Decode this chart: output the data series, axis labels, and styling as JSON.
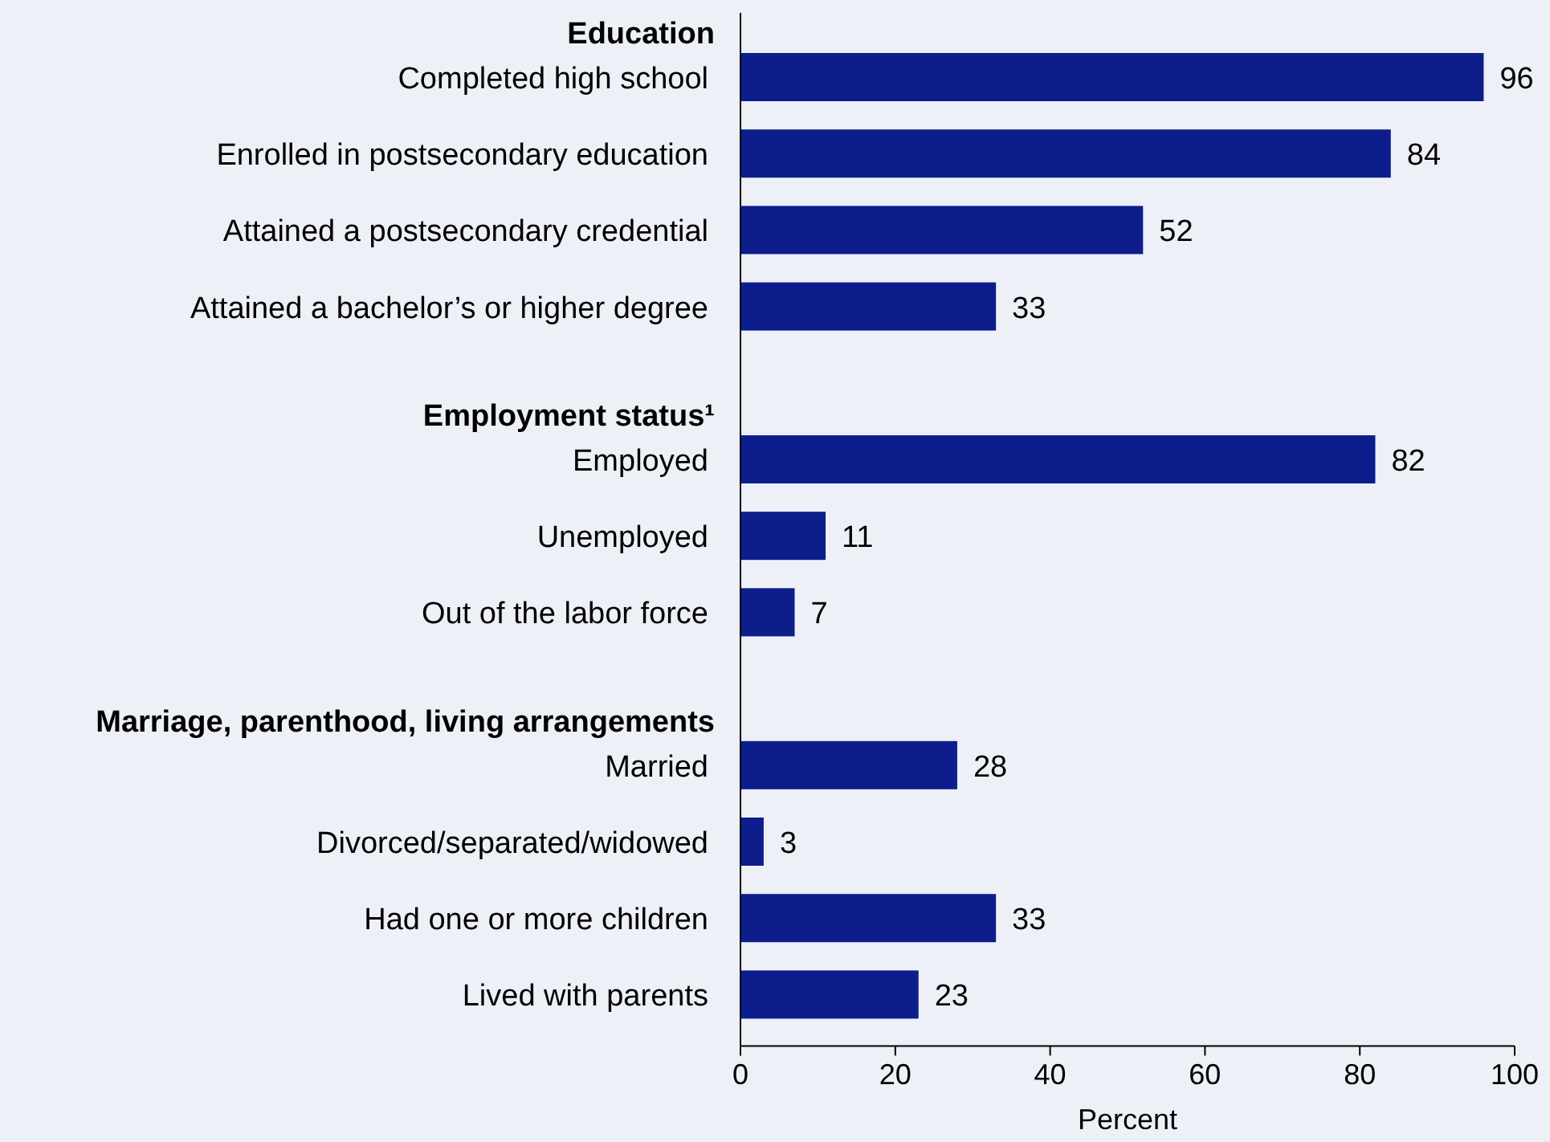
{
  "chart_data": {
    "type": "bar",
    "orientation": "horizontal",
    "xlabel": "Percent",
    "categories": [
      "Education",
      "Completed high school",
      "Enrolled in postsecondary education",
      "Attained a postsecondary credential",
      "Attained a bachelor’s or higher degree",
      "Employment status¹",
      "Employed",
      "Unemployed",
      "Out of the labor force",
      "Marriage, parenthood, living arrangements",
      "Married",
      "Divorced/separated/widowed",
      "Had one or more children",
      "Lived with parents"
    ],
    "values": [
      null,
      96,
      84,
      52,
      33,
      null,
      82,
      11,
      7,
      null,
      28,
      3,
      33,
      23
    ],
    "color": "#0d1e8c",
    "data_labels": true,
    "xlim": [
      0,
      100
    ],
    "xticks": [
      0,
      20,
      40,
      60,
      80,
      100
    ],
    "grid": false
  }
}
